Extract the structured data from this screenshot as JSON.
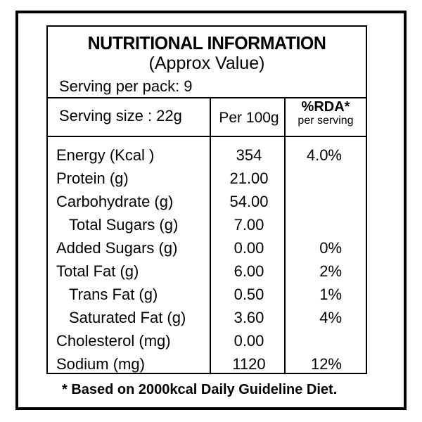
{
  "label": {
    "title": "NUTRITIONAL INFORMATION",
    "subtitle": "(Approx Value)",
    "serving_per_pack": "Serving per pack: 9",
    "serving_size": "Serving size : 22g",
    "col_per100": "Per 100g",
    "col_rda": "%RDA*",
    "col_rda_sub": "per serving"
  },
  "nutrients": [
    {
      "name": "Energy (Kcal )",
      "per100": "354",
      "rda": "4.0%"
    },
    {
      "name": "Protein (g)",
      "per100": "21.00",
      "rda": ""
    },
    {
      "name": "Carbohydrate (g)",
      "per100": "54.00",
      "rda": ""
    },
    {
      "name": "Total Sugars (g)",
      "per100": "7.00",
      "rda": ""
    },
    {
      "name": "Added Sugars (g)",
      "per100": "0.00",
      "rda": "0%"
    },
    {
      "name": "Total Fat (g)",
      "per100": "6.00",
      "rda": "2%"
    },
    {
      "name": "Trans Fat (g)",
      "per100": "0.50",
      "rda": "1%"
    },
    {
      "name": "Saturated Fat (g)",
      "per100": "3.60",
      "rda": "4%"
    },
    {
      "name": "Cholesterol (mg)",
      "per100": "0.00",
      "rda": ""
    },
    {
      "name": "Sodium (mg)",
      "per100": "1120",
      "rda": "12%"
    }
  ],
  "footnote": "* Based on 2000kcal Daily Guideline Diet."
}
